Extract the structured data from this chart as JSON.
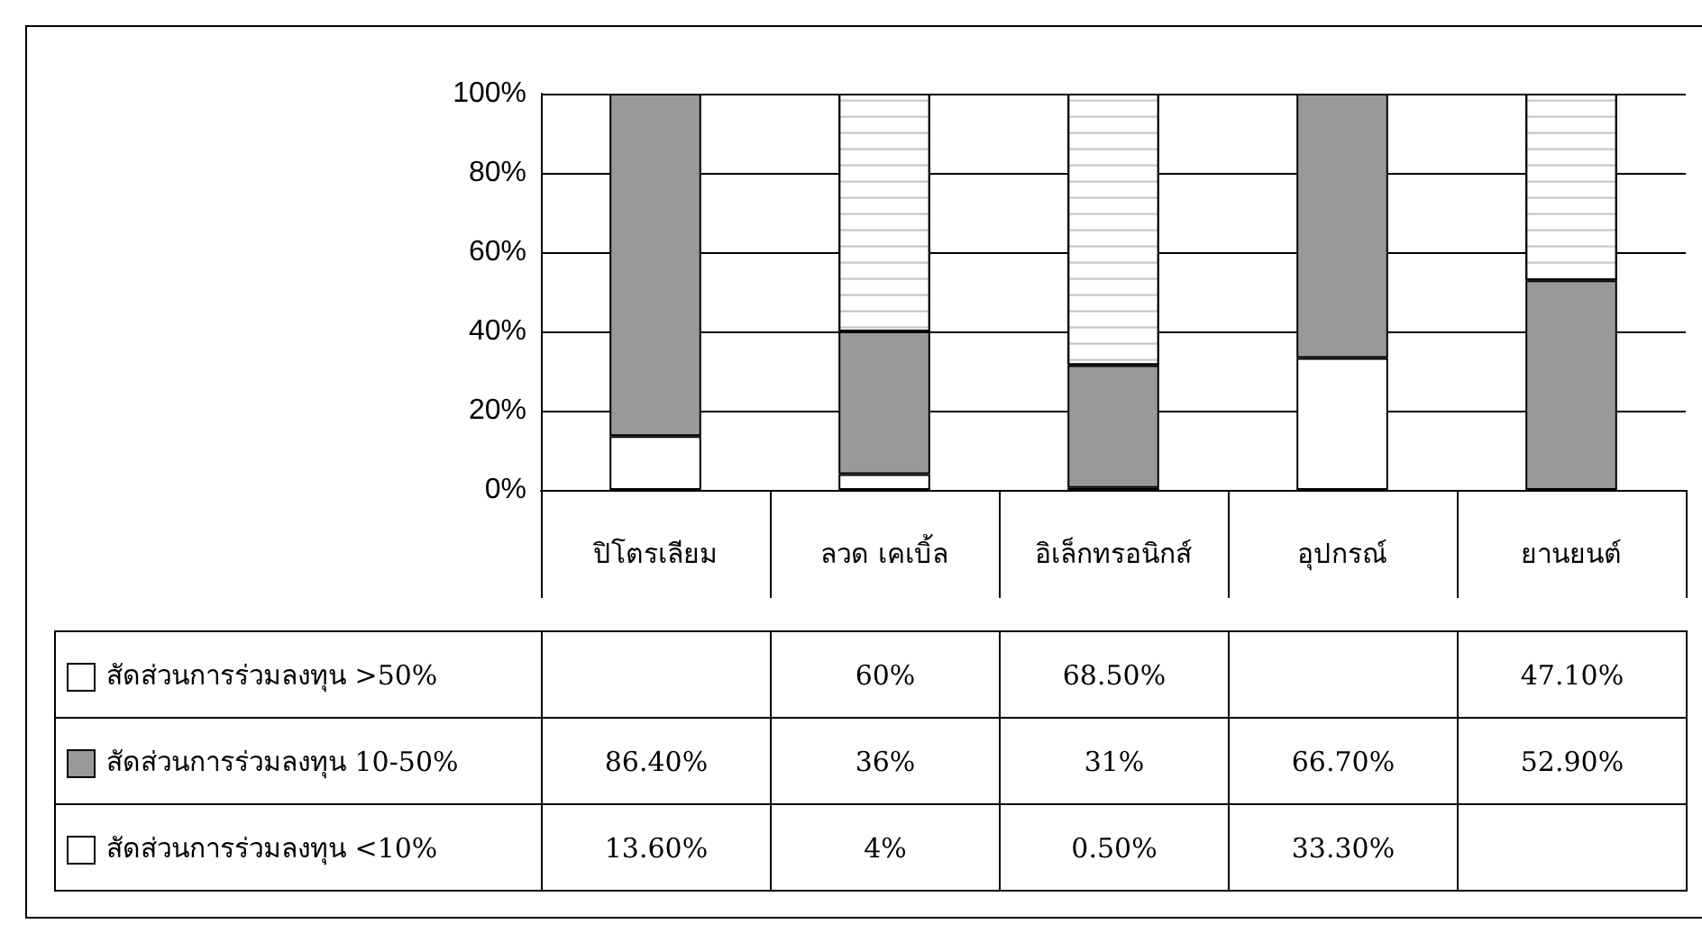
{
  "chart_data": {
    "type": "bar",
    "stacked": true,
    "categories": [
      "ปิโตรเลียม",
      "ลวด เคเบิ้ล",
      "อิเล็กทรอนิกส์",
      "อุปกรณ์",
      "ยานยนต์"
    ],
    "series": [
      {
        "name": "สัดส่วนการร่วมลงทุน <10%",
        "color": "#ffffff",
        "values": [
          13.6,
          4,
          0.5,
          33.3,
          null
        ],
        "value_labels": [
          "13.60%",
          "4%",
          "0.50%",
          "33.30%",
          null
        ]
      },
      {
        "name": "สัดส่วนการร่วมลงทุน 10-50%",
        "color": "#999999",
        "values": [
          86.4,
          36,
          31,
          66.7,
          52.9
        ],
        "value_labels": [
          "86.40%",
          "36%",
          "31%",
          "66.70%",
          "52.90%"
        ]
      },
      {
        "name": "สัดส่วนการร่วมลงทุน >50%",
        "color": "#ffffff",
        "values": [
          null,
          60,
          68.5,
          null,
          47.1
        ],
        "value_labels": [
          null,
          "60%",
          "68.50%",
          null,
          "47.10%"
        ]
      }
    ],
    "ylim": [
      0,
      100
    ],
    "yticks": [
      {
        "value": 0,
        "label": "0%"
      },
      {
        "value": 20,
        "label": "20%"
      },
      {
        "value": 40,
        "label": "40%"
      },
      {
        "value": 60,
        "label": "60%"
      },
      {
        "value": 80,
        "label": "80%"
      },
      {
        "value": 100,
        "label": "100%"
      }
    ],
    "grid": "y",
    "legend": "bottom"
  }
}
